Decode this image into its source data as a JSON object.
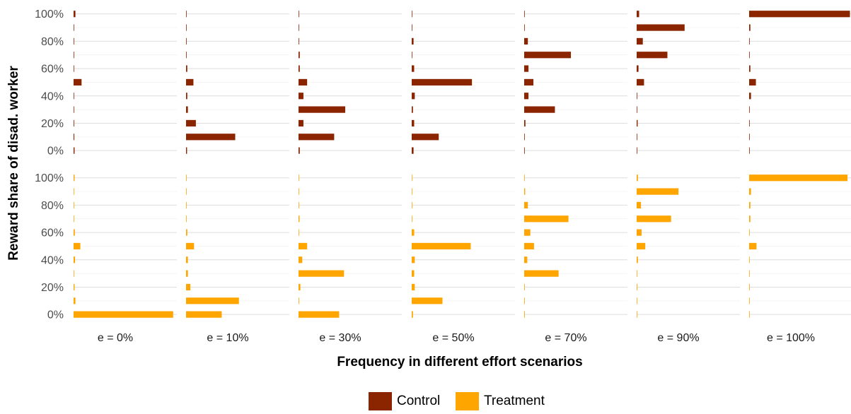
{
  "chart_data": {
    "type": "bar",
    "orientation": "horizontal",
    "facet_rows": [
      "Control",
      "Treatment"
    ],
    "facet_columns": [
      "e = 0%",
      "e = 10%",
      "e = 30%",
      "e = 50%",
      "e = 70%",
      "e = 90%",
      "e = 100%"
    ],
    "ylabel": "Reward share of disad. worker",
    "xlabel": "Frequency in different effort scenarios",
    "y_categories": [
      0,
      10,
      20,
      30,
      40,
      50,
      60,
      70,
      80,
      90,
      100
    ],
    "y_tick_labels": [
      "0%",
      "20%",
      "40%",
      "60%",
      "80%",
      "100%"
    ],
    "y_tick_values": [
      0,
      20,
      40,
      60,
      80,
      100
    ],
    "grid": true,
    "legend": {
      "position": "bottom",
      "entries": [
        "Control",
        "Treatment"
      ]
    },
    "colors": {
      "Control": "#8B2500",
      "Treatment": "#FFA500"
    },
    "panels": {
      "Control": [
        [
          0.8,
          0.6,
          0.5,
          0.3,
          0.3,
          6.5,
          0.3,
          0.3,
          0.3,
          0.3,
          1.5
        ],
        [
          0.8,
          40,
          8,
          1.5,
          1,
          6,
          1,
          0.3,
          0.3,
          0.3,
          0.3
        ],
        [
          1,
          29,
          4,
          38,
          4,
          7,
          1,
          1,
          0.3,
          0.3,
          0.3
        ],
        [
          1.5,
          22,
          2,
          1,
          2.5,
          49,
          2,
          0.3,
          1.5,
          0.3,
          0.3
        ],
        [
          0.3,
          0.3,
          1,
          25,
          3.5,
          7.5,
          3.5,
          38,
          3,
          0.3,
          0.3
        ],
        [
          0.3,
          0.3,
          0.8,
          0.3,
          0.3,
          6,
          1.5,
          25,
          5,
          39,
          2
        ],
        [
          0.3,
          0.3,
          0.3,
          0.3,
          1.5,
          5.5,
          1,
          0.3,
          0.3,
          1,
          82
        ]
      ],
      "Treatment": [
        [
          81,
          1.5,
          0.8,
          0.3,
          1.2,
          5.5,
          1,
          0.3,
          0.3,
          0.3,
          0.8
        ],
        [
          29,
          43,
          3.5,
          1.5,
          1.5,
          6.5,
          1,
          0.3,
          0.3,
          0.3,
          0.3
        ],
        [
          33,
          0.3,
          1.5,
          37,
          3,
          7,
          0.3,
          0.8,
          0.3,
          0.3,
          0.3
        ],
        [
          1,
          25,
          2.5,
          2,
          2.5,
          48,
          2,
          0.3,
          0.3,
          0.3,
          0.3
        ],
        [
          0.5,
          0.3,
          0.3,
          28,
          2.5,
          8,
          5,
          36,
          3,
          0.8,
          0.3
        ],
        [
          0.3,
          0.3,
          0.5,
          0.3,
          1,
          7,
          4,
          28,
          3.5,
          34,
          1
        ],
        [
          0.3,
          0.3,
          0.3,
          0.3,
          0.3,
          6,
          0.3,
          1,
          1,
          1.5,
          80
        ]
      ]
    }
  }
}
